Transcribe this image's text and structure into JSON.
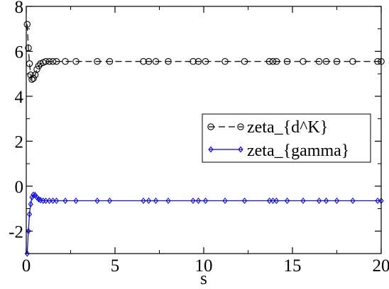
{
  "chart_data": {
    "type": "line",
    "xlabel": "s",
    "ylabel": "",
    "xlim": [
      0,
      20
    ],
    "ylim": [
      -3,
      8
    ],
    "x_ticks": [
      0,
      5,
      10,
      15,
      20
    ],
    "y_ticks": [
      -2,
      0,
      2,
      4,
      6,
      8
    ],
    "x_tick_labels": [
      "0",
      "5",
      "10",
      "15",
      "20"
    ],
    "y_tick_labels": [
      "-2",
      "0",
      "2",
      "4",
      "6",
      "8"
    ],
    "grid": false,
    "legend_position": "right",
    "series": [
      {
        "name": "zeta_{d^K}",
        "color": "#000000",
        "line_style": "dashed",
        "marker": "circle",
        "x": [
          0.05,
          0.12,
          0.18,
          0.25,
          0.32,
          0.4,
          0.5,
          0.6,
          0.7,
          0.8,
          0.95,
          1.1,
          1.3,
          1.5,
          1.7,
          2.2,
          2.8,
          4.0,
          4.7,
          6.6,
          6.9,
          7.3,
          8.0,
          9.4,
          9.7,
          10.1,
          11.2,
          12.3,
          13.7,
          13.9,
          14.1,
          14.7,
          15.6,
          16.5,
          16.9,
          17.5,
          18.4,
          19.8,
          20.0
        ],
        "y": [
          7.2,
          6.15,
          5.45,
          4.95,
          4.75,
          4.8,
          4.95,
          5.2,
          5.35,
          5.45,
          5.5,
          5.55,
          5.55,
          5.55,
          5.55,
          5.55,
          5.55,
          5.55,
          5.55,
          5.55,
          5.55,
          5.55,
          5.55,
          5.55,
          5.55,
          5.55,
          5.55,
          5.55,
          5.55,
          5.55,
          5.55,
          5.55,
          5.55,
          5.55,
          5.55,
          5.55,
          5.55,
          5.55,
          5.55
        ]
      },
      {
        "name": "zeta_{gamma}",
        "color": "#0000ff",
        "line_style": "solid",
        "marker": "diamond",
        "x": [
          0.05,
          0.12,
          0.18,
          0.25,
          0.32,
          0.4,
          0.5,
          0.6,
          0.7,
          0.8,
          0.95,
          1.1,
          1.3,
          1.5,
          1.7,
          2.2,
          2.8,
          4.0,
          4.7,
          6.6,
          6.9,
          7.3,
          8.0,
          9.4,
          9.7,
          10.1,
          11.2,
          12.3,
          13.7,
          13.9,
          14.1,
          14.7,
          15.6,
          16.5,
          16.9,
          17.5,
          18.4,
          19.8,
          20.0
        ],
        "y": [
          -3.0,
          -2.0,
          -1.25,
          -0.8,
          -0.5,
          -0.38,
          -0.4,
          -0.5,
          -0.58,
          -0.62,
          -0.65,
          -0.65,
          -0.65,
          -0.65,
          -0.65,
          -0.65,
          -0.65,
          -0.65,
          -0.65,
          -0.65,
          -0.65,
          -0.65,
          -0.65,
          -0.65,
          -0.65,
          -0.65,
          -0.65,
          -0.65,
          -0.65,
          -0.65,
          -0.65,
          -0.65,
          -0.65,
          -0.65,
          -0.65,
          -0.65,
          -0.65,
          -0.65,
          -0.65
        ]
      }
    ]
  }
}
